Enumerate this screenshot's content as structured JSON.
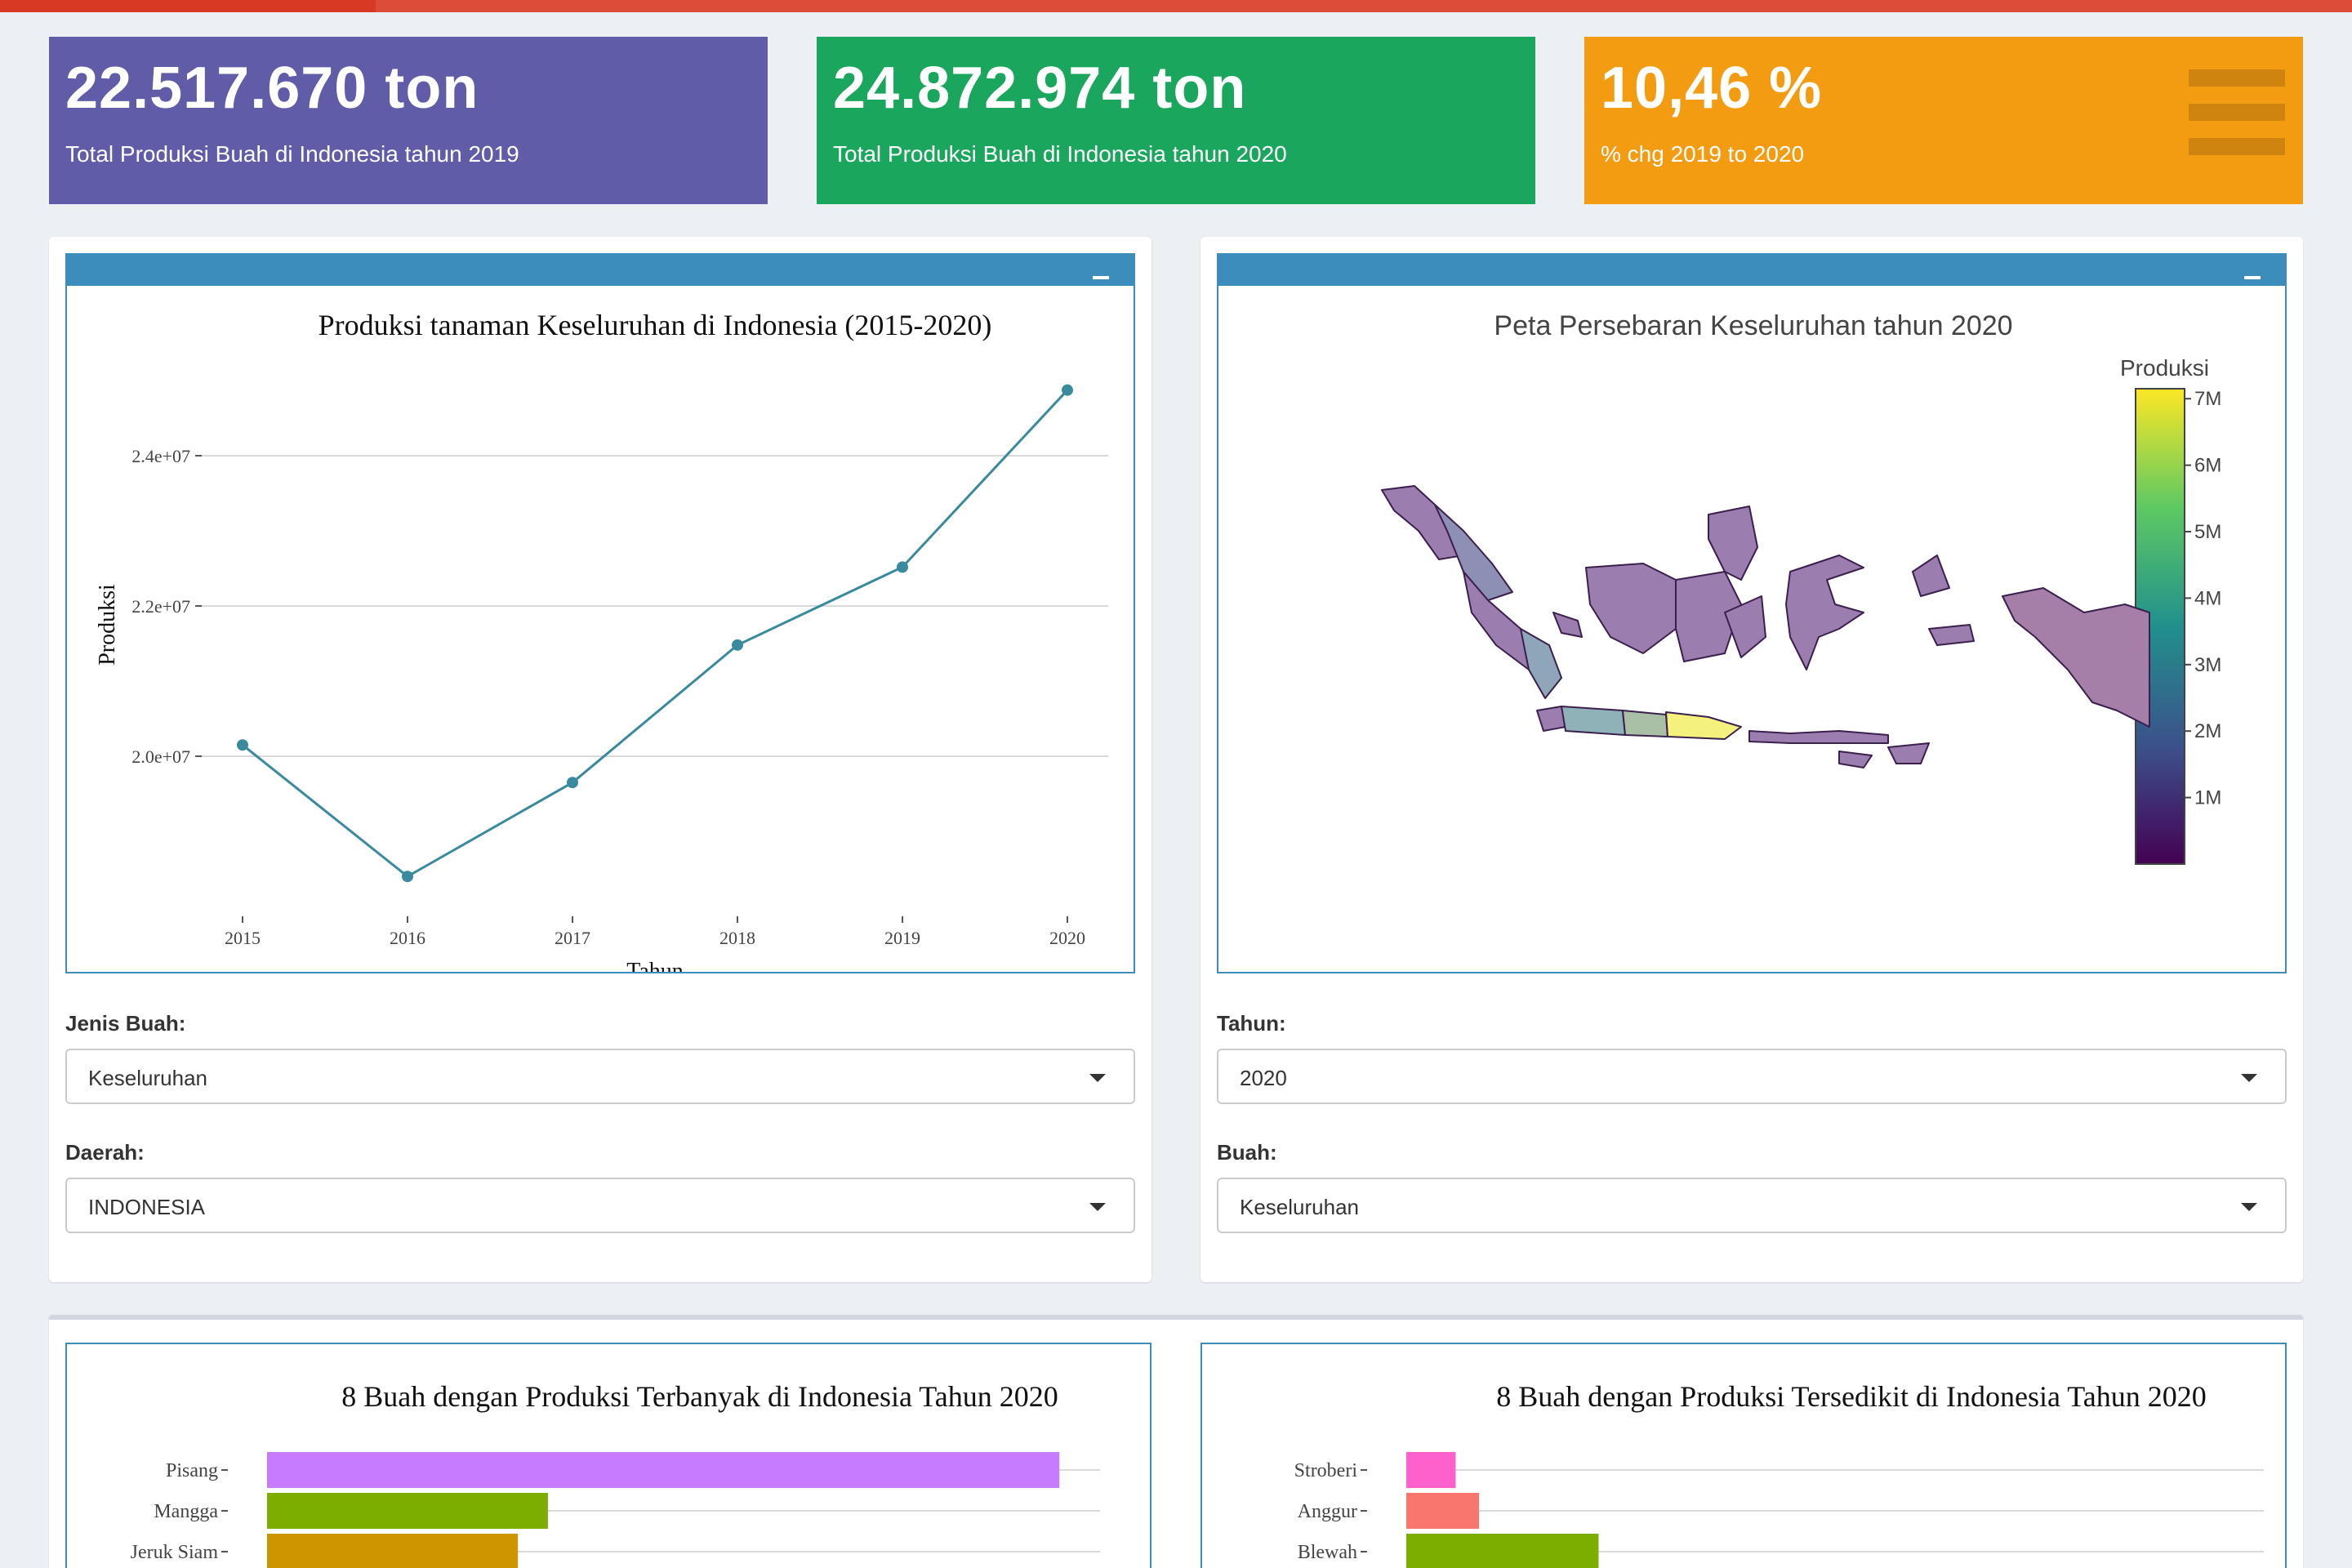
{
  "colors": {
    "accent_header": "#3c8dbc",
    "topbar": "#dd4b39",
    "box_purple": "#605ca8",
    "box_green": "#1ba65e",
    "box_orange": "#f39c12",
    "line": "#3a8a9e"
  },
  "value_boxes": [
    {
      "value": "22.517.670 ton",
      "label": "Total Produksi Buah di Indonesia tahun 2019",
      "color": "#605ca8"
    },
    {
      "value": "24.872.974 ton",
      "label": "Total Produksi Buah di Indonesia tahun 2020",
      "color": "#1ba65e"
    },
    {
      "value": "10,46 %",
      "label": "% chg 2019 to 2020",
      "color": "#f39c12",
      "icon": "menu-bars-icon"
    }
  ],
  "left_panel": {
    "jenis_label": "Jenis Buah:",
    "jenis_value": "Keseluruhan",
    "daerah_label": "Daerah:",
    "daerah_value": "INDONESIA"
  },
  "right_panel": {
    "tahun_label": "Tahun:",
    "tahun_value": "2020",
    "buah_label": "Buah:",
    "buah_value": "Keseluruhan"
  },
  "map": {
    "title": "Peta Persebaran Keseluruhan tahun 2020",
    "colorbar_title": "Produksi",
    "colorbar_ticks": [
      "7M",
      "6M",
      "5M",
      "4M",
      "3M",
      "2M",
      "1M"
    ],
    "colorscale": "viridis"
  },
  "chart_data": [
    {
      "type": "line",
      "title": "Produksi tanaman Keseluruhan di Indonesia (2015-2020)",
      "xlabel": "Tahun",
      "ylabel": "Produksi",
      "x": [
        2015,
        2016,
        2017,
        2018,
        2019,
        2020
      ],
      "y": [
        20150000,
        18400000,
        19650000,
        21480000,
        22517670,
        24872974
      ],
      "yticks": [
        "2.0e+07",
        "2.2e+07",
        "2.4e+07"
      ],
      "ytick_values": [
        20000000,
        22000000,
        24000000
      ],
      "ylim": [
        18000000,
        25500000
      ],
      "grid": true
    },
    {
      "type": "bar",
      "title": "8 Buah dengan Produksi Terbanyak di Indonesia Tahun 2020",
      "categories": [
        "Pisang",
        "Mangga",
        "Jeruk Siam"
      ],
      "values": [
        8180000,
        2900000,
        2590000
      ],
      "colors": [
        "#c77cff",
        "#7cae00",
        "#cd9600"
      ],
      "xlim": [
        0,
        8600000
      ],
      "grid": true
    },
    {
      "type": "bar",
      "title": "8 Buah dengan Produksi Tersedikit di Indonesia Tahun 2020",
      "categories": [
        "Stroberi",
        "Anggur",
        "Blewah"
      ],
      "values": [
        9500,
        14000,
        37000
      ],
      "colors": [
        "#ff61cc",
        "#f8766d",
        "#7cae00"
      ],
      "xlim": [
        0,
        165000
      ],
      "grid": true
    }
  ]
}
